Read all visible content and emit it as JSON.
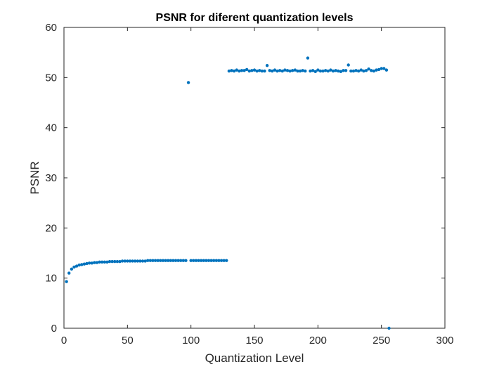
{
  "chart_data": {
    "type": "scatter",
    "title": "PSNR for diferent quantization levels",
    "xlabel": "Quantization Level",
    "ylabel": "PSNR",
    "xlim": [
      0,
      300
    ],
    "ylim": [
      0,
      60
    ],
    "xticks": [
      0,
      50,
      100,
      150,
      200,
      250,
      300
    ],
    "yticks": [
      0,
      10,
      20,
      30,
      40,
      50,
      60
    ],
    "grid": false,
    "marker_color": "#0072BD",
    "series": [
      {
        "points": [
          [
            2,
            9.3
          ],
          [
            4,
            11.0
          ],
          [
            6,
            11.8
          ],
          [
            8,
            12.2
          ],
          [
            10,
            12.4
          ],
          [
            12,
            12.6
          ],
          [
            14,
            12.7
          ],
          [
            16,
            12.8
          ],
          [
            18,
            12.9
          ],
          [
            20,
            13.0
          ],
          [
            22,
            13.0
          ],
          [
            24,
            13.1
          ],
          [
            26,
            13.1
          ],
          [
            28,
            13.2
          ],
          [
            30,
            13.2
          ],
          [
            32,
            13.2
          ],
          [
            34,
            13.2
          ],
          [
            36,
            13.3
          ],
          [
            38,
            13.3
          ],
          [
            40,
            13.3
          ],
          [
            42,
            13.3
          ],
          [
            44,
            13.3
          ],
          [
            46,
            13.4
          ],
          [
            48,
            13.4
          ],
          [
            50,
            13.4
          ],
          [
            52,
            13.4
          ],
          [
            54,
            13.4
          ],
          [
            56,
            13.4
          ],
          [
            58,
            13.4
          ],
          [
            60,
            13.4
          ],
          [
            62,
            13.4
          ],
          [
            64,
            13.4
          ],
          [
            66,
            13.5
          ],
          [
            68,
            13.5
          ],
          [
            70,
            13.5
          ],
          [
            72,
            13.5
          ],
          [
            74,
            13.5
          ],
          [
            76,
            13.5
          ],
          [
            78,
            13.5
          ],
          [
            80,
            13.5
          ],
          [
            82,
            13.5
          ],
          [
            84,
            13.5
          ],
          [
            86,
            13.5
          ],
          [
            88,
            13.5
          ],
          [
            90,
            13.5
          ],
          [
            92,
            13.5
          ],
          [
            94,
            13.5
          ],
          [
            96,
            13.5
          ],
          [
            98,
            49.0
          ],
          [
            100,
            13.5
          ],
          [
            102,
            13.5
          ],
          [
            104,
            13.5
          ],
          [
            106,
            13.5
          ],
          [
            108,
            13.5
          ],
          [
            110,
            13.5
          ],
          [
            112,
            13.5
          ],
          [
            114,
            13.5
          ],
          [
            116,
            13.5
          ],
          [
            118,
            13.5
          ],
          [
            120,
            13.5
          ],
          [
            122,
            13.5
          ],
          [
            124,
            13.5
          ],
          [
            126,
            13.5
          ],
          [
            128,
            13.5
          ],
          [
            130,
            51.3
          ],
          [
            132,
            51.4
          ],
          [
            134,
            51.3
          ],
          [
            136,
            51.5
          ],
          [
            138,
            51.3
          ],
          [
            140,
            51.4
          ],
          [
            142,
            51.4
          ],
          [
            144,
            51.6
          ],
          [
            146,
            51.3
          ],
          [
            148,
            51.4
          ],
          [
            150,
            51.5
          ],
          [
            152,
            51.3
          ],
          [
            154,
            51.4
          ],
          [
            156,
            51.3
          ],
          [
            158,
            51.3
          ],
          [
            160,
            52.4
          ],
          [
            162,
            51.4
          ],
          [
            164,
            51.3
          ],
          [
            166,
            51.5
          ],
          [
            168,
            51.3
          ],
          [
            170,
            51.4
          ],
          [
            172,
            51.3
          ],
          [
            174,
            51.5
          ],
          [
            176,
            51.4
          ],
          [
            178,
            51.3
          ],
          [
            180,
            51.4
          ],
          [
            182,
            51.5
          ],
          [
            184,
            51.3
          ],
          [
            186,
            51.3
          ],
          [
            188,
            51.4
          ],
          [
            190,
            51.3
          ],
          [
            192,
            53.9
          ],
          [
            194,
            51.3
          ],
          [
            196,
            51.4
          ],
          [
            198,
            51.2
          ],
          [
            200,
            51.5
          ],
          [
            202,
            51.3
          ],
          [
            204,
            51.3
          ],
          [
            206,
            51.4
          ],
          [
            208,
            51.3
          ],
          [
            210,
            51.5
          ],
          [
            212,
            51.3
          ],
          [
            214,
            51.4
          ],
          [
            216,
            51.3
          ],
          [
            218,
            51.2
          ],
          [
            220,
            51.4
          ],
          [
            222,
            51.4
          ],
          [
            224,
            52.5
          ],
          [
            226,
            51.3
          ],
          [
            228,
            51.3
          ],
          [
            230,
            51.4
          ],
          [
            232,
            51.3
          ],
          [
            234,
            51.5
          ],
          [
            236,
            51.3
          ],
          [
            238,
            51.4
          ],
          [
            240,
            51.7
          ],
          [
            242,
            51.4
          ],
          [
            244,
            51.3
          ],
          [
            246,
            51.5
          ],
          [
            248,
            51.6
          ],
          [
            250,
            51.8
          ],
          [
            252,
            51.8
          ],
          [
            254,
            51.5
          ],
          [
            256,
            0
          ]
        ]
      }
    ]
  }
}
